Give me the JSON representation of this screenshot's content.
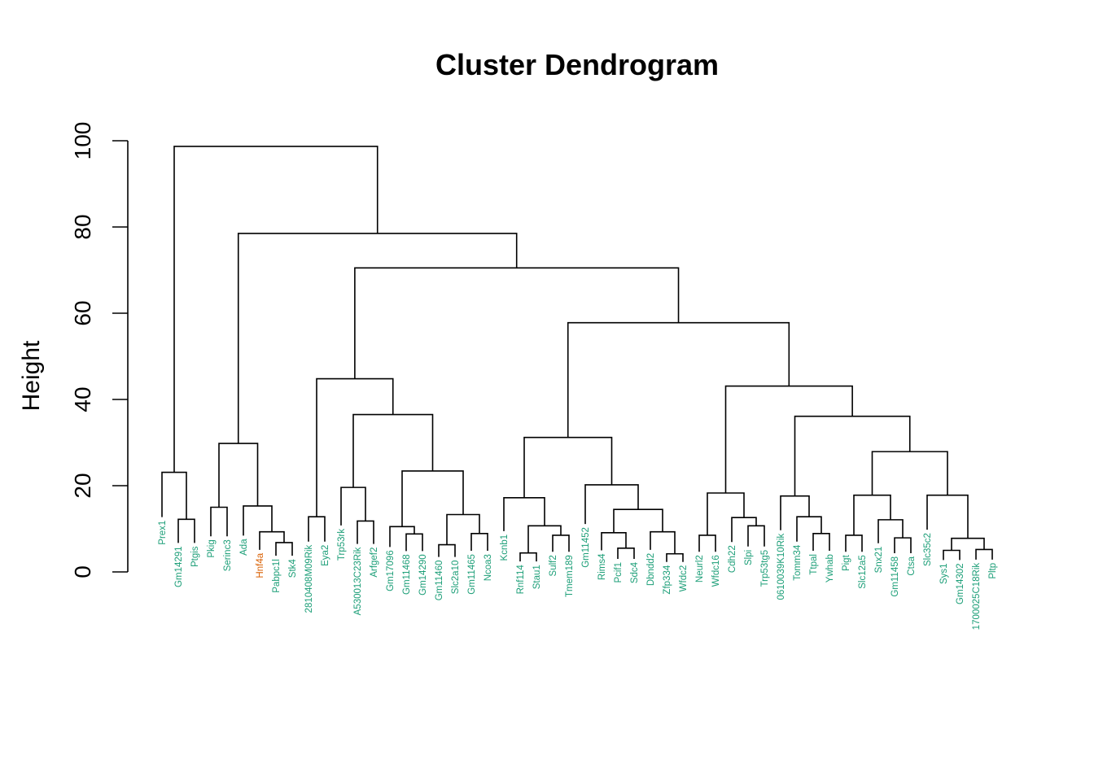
{
  "chart_data": {
    "type": "dendrogram",
    "title": "Cluster Dendrogram",
    "ylabel": "Height",
    "ylim": [
      0,
      100
    ],
    "yticks": [
      0,
      20,
      40,
      60,
      80,
      100
    ],
    "leaves": [
      {
        "label": "Prex1",
        "color": "#1b9e77"
      },
      {
        "label": "Gm14291",
        "color": "#1b9e77"
      },
      {
        "label": "Ptgis",
        "color": "#1b9e77"
      },
      {
        "label": "Pkig",
        "color": "#1b9e77"
      },
      {
        "label": "Serinc3",
        "color": "#1b9e77"
      },
      {
        "label": "Ada",
        "color": "#1b9e77"
      },
      {
        "label": "Hnf4a",
        "color": "#d95f02"
      },
      {
        "label": "Pabpc1l",
        "color": "#1b9e77"
      },
      {
        "label": "Stk4",
        "color": "#1b9e77"
      },
      {
        "label": "2810408M09Rik",
        "color": "#1b9e77"
      },
      {
        "label": "Eya2",
        "color": "#1b9e77"
      },
      {
        "label": "Trp53rk",
        "color": "#1b9e77"
      },
      {
        "label": "A530013C23Rik",
        "color": "#1b9e77"
      },
      {
        "label": "Arfgef2",
        "color": "#1b9e77"
      },
      {
        "label": "Gm17096",
        "color": "#1b9e77"
      },
      {
        "label": "Gm11468",
        "color": "#1b9e77"
      },
      {
        "label": "Gm14290",
        "color": "#1b9e77"
      },
      {
        "label": "Gm11460",
        "color": "#1b9e77"
      },
      {
        "label": "Slc2a10",
        "color": "#1b9e77"
      },
      {
        "label": "Gm11465",
        "color": "#1b9e77"
      },
      {
        "label": "Ncoa3",
        "color": "#1b9e77"
      },
      {
        "label": "Kcnb1",
        "color": "#1b9e77"
      },
      {
        "label": "Rnf114",
        "color": "#1b9e77"
      },
      {
        "label": "Stau1",
        "color": "#1b9e77"
      },
      {
        "label": "Sulf2",
        "color": "#1b9e77"
      },
      {
        "label": "Tmem189",
        "color": "#1b9e77"
      },
      {
        "label": "Gm11452",
        "color": "#1b9e77"
      },
      {
        "label": "Rims4",
        "color": "#1b9e77"
      },
      {
        "label": "Pcif1",
        "color": "#1b9e77"
      },
      {
        "label": "Sdc4",
        "color": "#1b9e77"
      },
      {
        "label": "Dbndd2",
        "color": "#1b9e77"
      },
      {
        "label": "Zfp334",
        "color": "#1b9e77"
      },
      {
        "label": "Wfdc2",
        "color": "#1b9e77"
      },
      {
        "label": "Neurl2",
        "color": "#1b9e77"
      },
      {
        "label": "Wfdc16",
        "color": "#1b9e77"
      },
      {
        "label": "Cdh22",
        "color": "#1b9e77"
      },
      {
        "label": "Slpi",
        "color": "#1b9e77"
      },
      {
        "label": "Trp53tg5",
        "color": "#1b9e77"
      },
      {
        "label": "0610039K10Rik",
        "color": "#1b9e77"
      },
      {
        "label": "Tomm34",
        "color": "#1b9e77"
      },
      {
        "label": "Ttpal",
        "color": "#1b9e77"
      },
      {
        "label": "Ywhab",
        "color": "#1b9e77"
      },
      {
        "label": "Pigt",
        "color": "#1b9e77"
      },
      {
        "label": "Slc12a5",
        "color": "#1b9e77"
      },
      {
        "label": "Snx21",
        "color": "#1b9e77"
      },
      {
        "label": "Gm11458",
        "color": "#1b9e77"
      },
      {
        "label": "Ctsa",
        "color": "#1b9e77"
      },
      {
        "label": "Slc35c2",
        "color": "#1b9e77"
      },
      {
        "label": "Sys1",
        "color": "#1b9e77"
      },
      {
        "label": "Gm14302",
        "color": "#1b9e77"
      },
      {
        "label": "1700025C18Rik",
        "color": "#1b9e77"
      },
      {
        "label": "Pltp",
        "color": "#1b9e77"
      }
    ],
    "merges": [
      {
        "id": "m1",
        "a": 1,
        "b": 2,
        "height": 12.2
      },
      {
        "id": "m2",
        "a": 0,
        "b": "m1",
        "height": 23.1
      },
      {
        "id": "m3",
        "a": 3,
        "b": 4,
        "height": 15.0
      },
      {
        "id": "m4",
        "a": 7,
        "b": 8,
        "height": 6.8
      },
      {
        "id": "m5",
        "a": 6,
        "b": "m4",
        "height": 9.3
      },
      {
        "id": "m6",
        "a": 5,
        "b": "m5",
        "height": 15.3
      },
      {
        "id": "m7",
        "a": "m3",
        "b": "m6",
        "height": 29.8
      },
      {
        "id": "m8",
        "a": 9,
        "b": 10,
        "height": 12.8
      },
      {
        "id": "m9",
        "a": 12,
        "b": 13,
        "height": 11.8
      },
      {
        "id": "m10",
        "a": 11,
        "b": "m9",
        "height": 19.6
      },
      {
        "id": "m11",
        "a": 15,
        "b": 16,
        "height": 8.8
      },
      {
        "id": "m12",
        "a": 14,
        "b": "m11",
        "height": 10.5
      },
      {
        "id": "m13",
        "a": 17,
        "b": 18,
        "height": 6.3
      },
      {
        "id": "m14",
        "a": 19,
        "b": 20,
        "height": 8.9
      },
      {
        "id": "m15",
        "a": "m13",
        "b": "m14",
        "height": 13.3
      },
      {
        "id": "m16",
        "a": "m12",
        "b": "m15",
        "height": 23.4
      },
      {
        "id": "m17",
        "a": "m10",
        "b": "m16",
        "height": 36.5
      },
      {
        "id": "m18",
        "a": "m8",
        "b": "m17",
        "height": 44.8
      },
      {
        "id": "m19",
        "a": 22,
        "b": 23,
        "height": 4.4
      },
      {
        "id": "m20",
        "a": 24,
        "b": 25,
        "height": 8.5
      },
      {
        "id": "m21",
        "a": "m19",
        "b": "m20",
        "height": 10.7
      },
      {
        "id": "m22",
        "a": 21,
        "b": "m21",
        "height": 17.2
      },
      {
        "id": "m23",
        "a": 28,
        "b": 29,
        "height": 5.5
      },
      {
        "id": "m24",
        "a": 27,
        "b": "m23",
        "height": 9.1
      },
      {
        "id": "m25",
        "a": 31,
        "b": 32,
        "height": 4.2
      },
      {
        "id": "m26",
        "a": 30,
        "b": "m25",
        "height": 9.3
      },
      {
        "id": "m27",
        "a": "m24",
        "b": "m26",
        "height": 14.5
      },
      {
        "id": "m28",
        "a": 26,
        "b": "m27",
        "height": 20.2
      },
      {
        "id": "m29",
        "a": "m22",
        "b": "m28",
        "height": 31.2
      },
      {
        "id": "m30",
        "a": 33,
        "b": 34,
        "height": 8.5
      },
      {
        "id": "m31",
        "a": 36,
        "b": 37,
        "height": 10.7
      },
      {
        "id": "m32",
        "a": 35,
        "b": "m31",
        "height": 12.6
      },
      {
        "id": "m33",
        "a": "m30",
        "b": "m32",
        "height": 18.3
      },
      {
        "id": "m34",
        "a": 40,
        "b": 41,
        "height": 8.9
      },
      {
        "id": "m35",
        "a": 39,
        "b": "m34",
        "height": 12.8
      },
      {
        "id": "m36",
        "a": 38,
        "b": "m35",
        "height": 17.6
      },
      {
        "id": "m37",
        "a": 45,
        "b": 46,
        "height": 7.9
      },
      {
        "id": "m38",
        "a": 44,
        "b": "m37",
        "height": 12.1
      },
      {
        "id": "m39",
        "a": 42,
        "b": 43,
        "height": 8.5
      },
      {
        "id": "m40",
        "a": "m39",
        "b": "m38",
        "height": 17.8
      },
      {
        "id": "m41",
        "a": 48,
        "b": 49,
        "height": 5.0
      },
      {
        "id": "m42",
        "a": 50,
        "b": 51,
        "height": 5.2
      },
      {
        "id": "m43",
        "a": "m41",
        "b": "m42",
        "height": 7.8
      },
      {
        "id": "m44",
        "a": 47,
        "b": "m43",
        "height": 17.8
      },
      {
        "id": "m45",
        "a": "m40",
        "b": "m44",
        "height": 27.9
      },
      {
        "id": "m46",
        "a": "m36",
        "b": "m45",
        "height": 36.1
      },
      {
        "id": "m47",
        "a": "m33",
        "b": "m46",
        "height": 43.1
      },
      {
        "id": "m48",
        "a": "m29",
        "b": "m47",
        "height": 57.8
      },
      {
        "id": "m49",
        "a": "m18",
        "b": "m48",
        "height": 70.5
      },
      {
        "id": "m50",
        "a": "m7",
        "b": "m49",
        "height": 78.5
      },
      {
        "id": "m51",
        "a": "m2",
        "b": "m50",
        "height": 98.7
      }
    ]
  }
}
